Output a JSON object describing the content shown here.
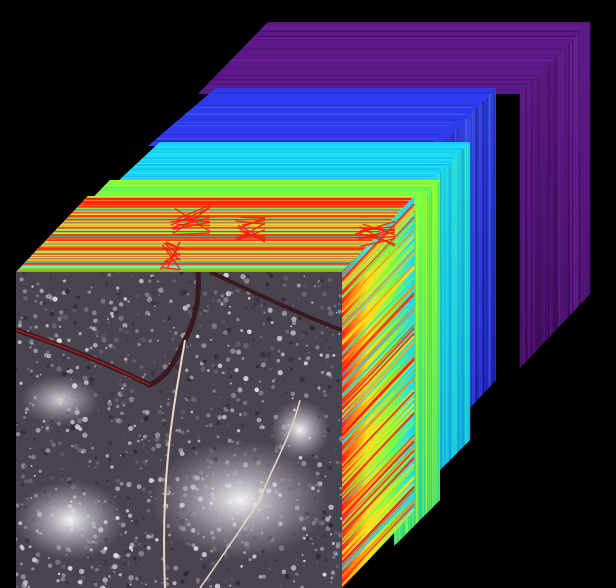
{
  "figure": {
    "background_color": "#000000",
    "bands": [
      {
        "name": "band-1",
        "colors": [
          "#3a0a55",
          "#5e1a8a",
          "#7a2aa8"
        ]
      },
      {
        "name": "band-2",
        "colors": [
          "#1a1aa0",
          "#2e3cf0",
          "#4a6cff"
        ]
      },
      {
        "name": "band-3",
        "colors": [
          "#0aa0d8",
          "#18d8ff",
          "#40ffd0"
        ]
      },
      {
        "name": "band-4",
        "colors": [
          "#20e080",
          "#7cff40",
          "#d8ff20"
        ]
      },
      {
        "name": "band-5",
        "colors": [
          "#ffe020",
          "#ff8a10",
          "#ff1a10"
        ]
      }
    ],
    "front_image": {
      "palette": [
        "#2a2630",
        "#4a4450",
        "#6e6878",
        "#9a94a4",
        "#d8d4de",
        "#f2f0f4"
      ],
      "road_color": "#e8d8c8",
      "highlight_color": "#c01010"
    }
  }
}
